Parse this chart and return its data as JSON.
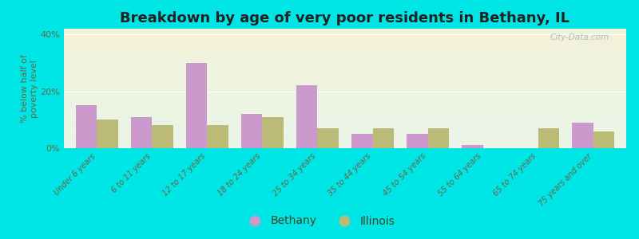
{
  "title": "Breakdown by age of very poor residents in Bethany, IL",
  "ylabel": "% below half of\npoverty level",
  "categories": [
    "Under 6 years",
    "6 to 11 years",
    "12 to 17 years",
    "18 to 24 years",
    "25 to 34 years",
    "35 to 44 years",
    "45 to 54 years",
    "55 to 64 years",
    "65 to 74 years",
    "75 years and over"
  ],
  "bethany_values": [
    15,
    11,
    30,
    12,
    22,
    5,
    5,
    1,
    0,
    9
  ],
  "illinois_values": [
    10,
    8,
    8,
    11,
    7,
    7,
    7,
    0,
    7,
    6
  ],
  "bethany_color": "#cc99cc",
  "illinois_color": "#bbbb77",
  "background_outer": "#00e5e5",
  "background_inner_top": "#eaf5e8",
  "background_inner_bottom": "#f2f2d8",
  "ylim": [
    0,
    42
  ],
  "yticks": [
    0,
    20,
    40
  ],
  "ytick_labels": [
    "0%",
    "20%",
    "40%"
  ],
  "bar_width": 0.38,
  "title_fontsize": 13,
  "ylabel_fontsize": 8,
  "tick_fontsize": 7,
  "legend_bethany": "Bethany",
  "legend_illinois": "Illinois"
}
